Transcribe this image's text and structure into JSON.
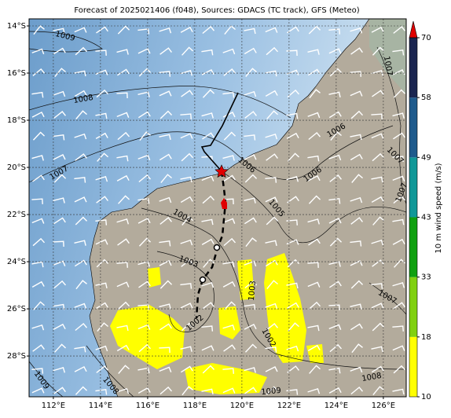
{
  "map": {
    "title": "Forecast of 2025021406 (f048), Sources: GDACS (TC track), GFS (Meteo)",
    "xlim": [
      110.97,
      126.97
    ],
    "ylim": [
      -29.73,
      -13.7
    ],
    "xticks": [
      {
        "value": 112,
        "label": "112°E"
      },
      {
        "value": 114,
        "label": "114°E"
      },
      {
        "value": 116,
        "label": "116°E"
      },
      {
        "value": 118,
        "label": "118°E"
      },
      {
        "value": 120,
        "label": "120°E"
      },
      {
        "value": 122,
        "label": "122°E"
      },
      {
        "value": 124,
        "label": "124°E"
      },
      {
        "value": 126,
        "label": "126°E"
      }
    ],
    "yticks": [
      {
        "value": -14,
        "label": "14°S"
      },
      {
        "value": -16,
        "label": "16°S"
      },
      {
        "value": -18,
        "label": "18°S"
      },
      {
        "value": -20,
        "label": "20°S"
      },
      {
        "value": -22,
        "label": "22°S"
      },
      {
        "value": -24,
        "label": "24°S"
      },
      {
        "value": -26,
        "label": "26°S"
      },
      {
        "value": -28,
        "label": "28°S"
      }
    ],
    "grid": true,
    "isobar_labels": [
      "1009",
      "1008",
      "1007",
      "1006",
      "1006",
      "1006",
      "1007",
      "1007",
      "1007",
      "1005",
      "1004",
      "1003",
      "1003",
      "1002",
      "1002",
      "1007",
      "1008",
      "1009",
      "1009",
      "1008"
    ]
  },
  "colorbar": {
    "label": "10 m wind speed (m/s)",
    "levels": [
      10,
      18,
      33,
      43,
      49,
      58,
      70
    ],
    "colors": [
      "#ffff00",
      "#80d010",
      "#10a010",
      "#109898",
      "#1e5a8c",
      "#1a2550"
    ],
    "extend_color": "#e00000"
  }
}
